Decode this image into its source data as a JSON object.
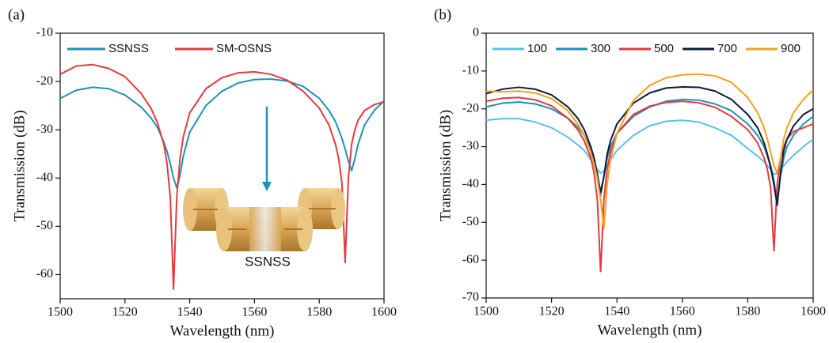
{
  "chart_data": [
    {
      "type": "line",
      "panel_label": "(a)",
      "xlabel": "Wavelength (nm)",
      "ylabel": "Transmission (dB)",
      "annotation": "SSNSS",
      "legend": "top-left",
      "xlim": [
        1500,
        1600
      ],
      "xticks": [
        1500,
        1520,
        1540,
        1560,
        1580,
        1600
      ],
      "ylim": [
        -65,
        -10
      ],
      "yticks": [
        -10,
        -20,
        -30,
        -40,
        -50,
        -60
      ],
      "x": [
        1500,
        1505,
        1510,
        1515,
        1520,
        1525,
        1528,
        1530,
        1532,
        1533,
        1534,
        1535,
        1536,
        1537,
        1538,
        1540,
        1545,
        1550,
        1555,
        1560,
        1565,
        1570,
        1575,
        1580,
        1583,
        1585,
        1586,
        1587,
        1588,
        1589,
        1590,
        1591,
        1592,
        1594,
        1597,
        1600
      ],
      "series": [
        {
          "name": "SSNSS",
          "color": "#1a93b8",
          "values": [
            -23.5,
            -21.8,
            -21.2,
            -21.5,
            -22.8,
            -25.3,
            -27.5,
            -29.5,
            -32.5,
            -34.5,
            -37,
            -40,
            -42,
            -39.5,
            -35.5,
            -30.5,
            -25,
            -22,
            -20.3,
            -19.6,
            -19.5,
            -19.9,
            -21,
            -23.5,
            -26,
            -28.3,
            -30,
            -31.8,
            -34,
            -36.5,
            -38.5,
            -36,
            -33,
            -29,
            -26,
            -24
          ]
        },
        {
          "name": "SM-OSNS",
          "color": "#e8373e",
          "values": [
            -18.5,
            -16.8,
            -16.5,
            -17.3,
            -19,
            -22.5,
            -25.5,
            -28.5,
            -33,
            -37,
            -44,
            -63,
            -44,
            -36,
            -31.5,
            -26.5,
            -21.5,
            -19.2,
            -18.2,
            -18,
            -18.5,
            -19.7,
            -22,
            -25.5,
            -29,
            -33,
            -36,
            -41,
            -57.5,
            -40,
            -33,
            -30,
            -28,
            -26,
            -24.8,
            -24.2
          ]
        }
      ]
    },
    {
      "type": "line",
      "panel_label": "(b)",
      "xlabel": "Wavelength (nm)",
      "ylabel": "Transmission (dB)",
      "legend": "top",
      "xlim": [
        1500,
        1600
      ],
      "xticks": [
        1500,
        1520,
        1540,
        1560,
        1580,
        1600
      ],
      "ylim": [
        -70,
        0
      ],
      "yticks": [
        0,
        -10,
        -20,
        -30,
        -40,
        -50,
        -60,
        -70
      ],
      "x": [
        1500,
        1505,
        1510,
        1515,
        1520,
        1525,
        1528,
        1530,
        1532,
        1533,
        1534,
        1535,
        1536,
        1537,
        1538,
        1540,
        1545,
        1550,
        1555,
        1560,
        1565,
        1570,
        1575,
        1580,
        1583,
        1585,
        1586,
        1587,
        1588,
        1589,
        1590,
        1591,
        1592,
        1594,
        1597,
        1600
      ],
      "series": [
        {
          "name": "100",
          "color": "#5bc0eb",
          "values": [
            -23,
            -22.6,
            -22.6,
            -23.5,
            -25,
            -27.5,
            -29.5,
            -31,
            -33.5,
            -34.8,
            -36,
            -37,
            -36.5,
            -35,
            -33.5,
            -31,
            -27,
            -24.5,
            -23.3,
            -23,
            -23.5,
            -25,
            -27,
            -30.5,
            -32.5,
            -34,
            -35,
            -36,
            -37.3,
            -37,
            -36,
            -35,
            -34,
            -32.3,
            -30,
            -28
          ]
        },
        {
          "name": "300",
          "color": "#1a93b8",
          "values": [
            -19.5,
            -18.5,
            -18.2,
            -18.7,
            -20,
            -22.5,
            -24.8,
            -27,
            -30.5,
            -33,
            -37,
            -43,
            -38,
            -33,
            -30,
            -26.5,
            -22,
            -19.5,
            -18,
            -17.5,
            -17.7,
            -18.7,
            -20.5,
            -24,
            -27,
            -30,
            -32.5,
            -35,
            -39,
            -45,
            -38,
            -33,
            -30,
            -27,
            -24,
            -22
          ]
        },
        {
          "name": "500",
          "color": "#e8373e",
          "values": [
            -18,
            -17.2,
            -17,
            -17.6,
            -19.2,
            -22.5,
            -25.5,
            -28.5,
            -33,
            -37,
            -44,
            -63,
            -44,
            -36,
            -31.5,
            -26.5,
            -21.5,
            -19.3,
            -18.3,
            -18,
            -18.4,
            -19.6,
            -22,
            -25.5,
            -29,
            -33,
            -36,
            -41,
            -57.5,
            -40,
            -33,
            -30,
            -28,
            -26,
            -25,
            -24
          ]
        },
        {
          "name": "700",
          "color": "#0b1a3d",
          "values": [
            -16,
            -14.8,
            -14.3,
            -14.8,
            -16.3,
            -19.5,
            -22.5,
            -25.5,
            -30,
            -33,
            -37.5,
            -42,
            -38,
            -32,
            -28.5,
            -24,
            -18.5,
            -15.8,
            -14.5,
            -14.2,
            -14.3,
            -15.3,
            -17.5,
            -21.5,
            -25,
            -29,
            -32,
            -35.5,
            -40,
            -45.5,
            -37,
            -31,
            -28,
            -24.5,
            -21.5,
            -20
          ]
        },
        {
          "name": "900",
          "color": "#f5a01a",
          "values": [
            -15.3,
            -15.5,
            -15.3,
            -15.8,
            -17.3,
            -20.5,
            -24,
            -27,
            -31.5,
            -34.5,
            -38.5,
            -44,
            -51.5,
            -40,
            -33.5,
            -26.5,
            -17.8,
            -13.8,
            -11.8,
            -11,
            -10.8,
            -11.3,
            -13,
            -17,
            -21,
            -25,
            -28,
            -31.5,
            -35,
            -37,
            -33,
            -28,
            -25,
            -21,
            -17.5,
            -15
          ]
        }
      ]
    }
  ]
}
